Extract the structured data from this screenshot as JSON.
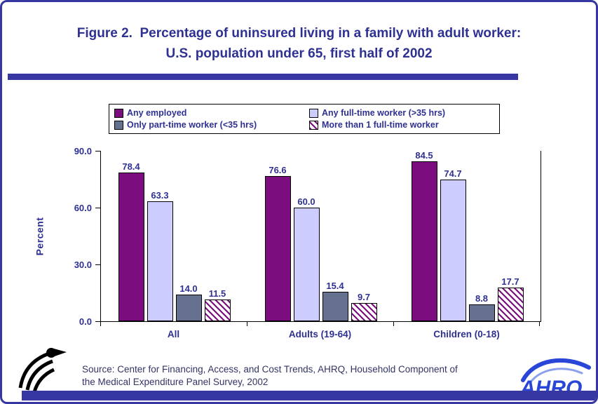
{
  "colors": {
    "navy_text": "#2E3192",
    "frame": "#3737A3",
    "source_text": "#333366"
  },
  "title": {
    "line1": "Figure 2.  Percentage of uninsured living in a family with adult worker:",
    "line2": "U.S. population under 65, first half of 2002"
  },
  "chart_data": {
    "type": "bar",
    "title": "Figure 2. Percentage of uninsured living in a family with adult worker: U.S. population under 65, first half of 2002",
    "xlabel": "",
    "ylabel": "Percent",
    "ylim": [
      0,
      90
    ],
    "ytick_labels": [
      "90.0",
      "60.0",
      "30.0",
      "0.0"
    ],
    "grid": false,
    "legend_position": "top",
    "categories": [
      "All",
      "Adults (19-64)",
      "Children (0-18)"
    ],
    "series": [
      {
        "name": "Any employed",
        "color": "#7B0D7E",
        "pattern": "solid",
        "values": [
          78.4,
          76.6,
          84.5
        ]
      },
      {
        "name": "Any full-time worker (>35 hrs)",
        "color": "#CCCCFF",
        "pattern": "solid",
        "values": [
          63.3,
          60.0,
          74.7
        ]
      },
      {
        "name": "Only part-time worker (<35 hrs)",
        "color": "#66708F",
        "pattern": "solid",
        "values": [
          14.0,
          15.4,
          8.8
        ]
      },
      {
        "name": "More than 1 full-time worker",
        "color": "#7B0D7E",
        "pattern": "hatch",
        "values": [
          11.5,
          9.7,
          17.7
        ]
      }
    ]
  },
  "source": {
    "line1": "Source: Center for Financing, Access, and Cost Trends, AHRQ, Household Component of",
    "line2": "the Medical Expenditure Panel Survey, 2002"
  },
  "logos": {
    "ahrq_text": "AHRQ"
  }
}
